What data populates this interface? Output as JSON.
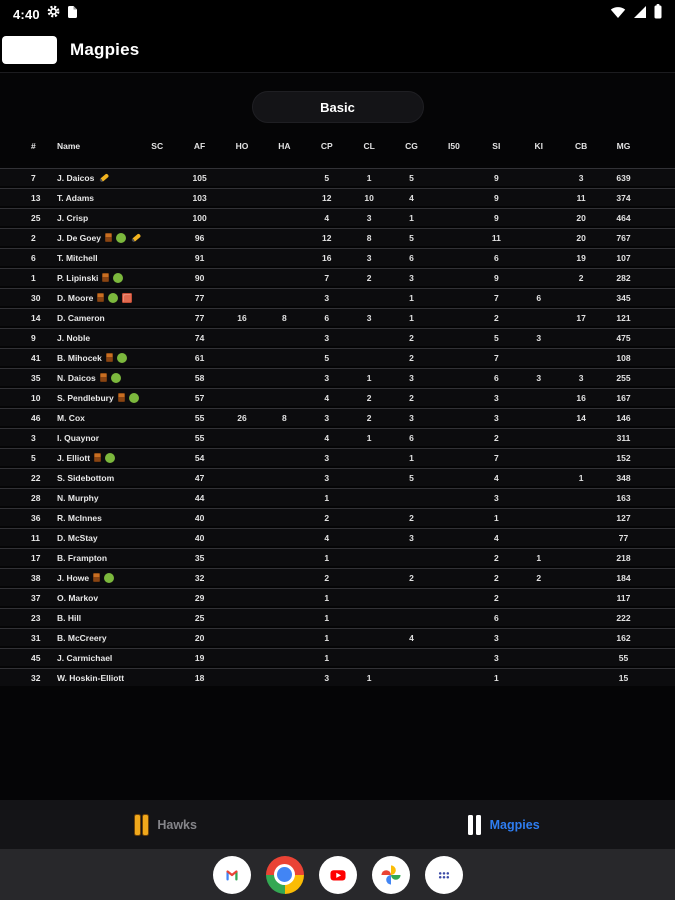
{
  "status_bar": {
    "time": "4:40",
    "left_icons": [
      "gear-icon",
      "file-icon"
    ],
    "right_icons": [
      "wifi-icon",
      "signal-icon",
      "battery-icon"
    ]
  },
  "header": {
    "title": "Magpies"
  },
  "view_toggle": {
    "label": "Basic"
  },
  "table": {
    "columns": [
      "#",
      "Name",
      "SC",
      "AF",
      "HO",
      "HA",
      "CP",
      "CL",
      "CG",
      "I50",
      "SI",
      "KI",
      "CB",
      "MG"
    ],
    "rows": [
      {
        "num": "7",
        "name": "J. Daicos",
        "icons": [
          "pencil"
        ],
        "stats": [
          "",
          "105",
          "",
          "",
          "5",
          "1",
          "5",
          "",
          "9",
          "",
          "3",
          "639"
        ]
      },
      {
        "num": "13",
        "name": "T. Adams",
        "icons": [],
        "stats": [
          "",
          "103",
          "",
          "",
          "12",
          "10",
          "4",
          "",
          "9",
          "",
          "11",
          "374"
        ]
      },
      {
        "num": "25",
        "name": "J. Crisp",
        "icons": [],
        "stats": [
          "",
          "100",
          "",
          "",
          "4",
          "3",
          "1",
          "",
          "9",
          "",
          "20",
          "464"
        ]
      },
      {
        "num": "2",
        "name": "J. De Goey",
        "icons": [
          "bench",
          "green",
          "pencil"
        ],
        "stats": [
          "",
          "96",
          "",
          "",
          "12",
          "8",
          "5",
          "",
          "11",
          "",
          "20",
          "767"
        ]
      },
      {
        "num": "6",
        "name": "T. Mitchell",
        "icons": [],
        "stats": [
          "",
          "91",
          "",
          "",
          "16",
          "3",
          "6",
          "",
          "6",
          "",
          "19",
          "107"
        ]
      },
      {
        "num": "1",
        "name": "P. Lipinski",
        "icons": [
          "bench",
          "green"
        ],
        "stats": [
          "",
          "90",
          "",
          "",
          "7",
          "2",
          "3",
          "",
          "9",
          "",
          "2",
          "282"
        ]
      },
      {
        "num": "30",
        "name": "D. Moore",
        "icons": [
          "bench",
          "green",
          "card"
        ],
        "stats": [
          "",
          "77",
          "",
          "",
          "3",
          "",
          "1",
          "",
          "7",
          "6",
          "",
          "345"
        ]
      },
      {
        "num": "14",
        "name": "D. Cameron",
        "icons": [],
        "stats": [
          "",
          "77",
          "16",
          "8",
          "6",
          "3",
          "1",
          "",
          "2",
          "",
          "17",
          "121"
        ]
      },
      {
        "num": "9",
        "name": "J. Noble",
        "icons": [],
        "stats": [
          "",
          "74",
          "",
          "",
          "3",
          "",
          "2",
          "",
          "5",
          "3",
          "",
          "475"
        ]
      },
      {
        "num": "41",
        "name": "B. Mihocek",
        "icons": [
          "bench",
          "green"
        ],
        "stats": [
          "",
          "61",
          "",
          "",
          "5",
          "",
          "2",
          "",
          "7",
          "",
          "",
          "108"
        ]
      },
      {
        "num": "35",
        "name": "N. Daicos",
        "icons": [
          "bench",
          "green"
        ],
        "stats": [
          "",
          "58",
          "",
          "",
          "3",
          "1",
          "3",
          "",
          "6",
          "3",
          "3",
          "255"
        ]
      },
      {
        "num": "10",
        "name": "S. Pendlebury",
        "icons": [
          "bench",
          "green"
        ],
        "stats": [
          "",
          "57",
          "",
          "",
          "4",
          "2",
          "2",
          "",
          "3",
          "",
          "16",
          "167"
        ]
      },
      {
        "num": "46",
        "name": "M. Cox",
        "icons": [],
        "stats": [
          "",
          "55",
          "26",
          "8",
          "3",
          "2",
          "3",
          "",
          "3",
          "",
          "14",
          "146"
        ]
      },
      {
        "num": "3",
        "name": "I. Quaynor",
        "icons": [],
        "stats": [
          "",
          "55",
          "",
          "",
          "4",
          "1",
          "6",
          "",
          "2",
          "",
          "",
          "311"
        ]
      },
      {
        "num": "5",
        "name": "J. Elliott",
        "icons": [
          "bench",
          "green"
        ],
        "stats": [
          "",
          "54",
          "",
          "",
          "3",
          "",
          "1",
          "",
          "7",
          "",
          "",
          "152"
        ]
      },
      {
        "num": "22",
        "name": "S. Sidebottom",
        "icons": [],
        "stats": [
          "",
          "47",
          "",
          "",
          "3",
          "",
          "5",
          "",
          "4",
          "",
          "1",
          "348"
        ]
      },
      {
        "num": "28",
        "name": "N. Murphy",
        "icons": [],
        "stats": [
          "",
          "44",
          "",
          "",
          "1",
          "",
          "",
          "",
          "3",
          "",
          "",
          "163"
        ]
      },
      {
        "num": "36",
        "name": "R. McInnes",
        "icons": [],
        "stats": [
          "",
          "40",
          "",
          "",
          "2",
          "",
          "2",
          "",
          "1",
          "",
          "",
          "127"
        ]
      },
      {
        "num": "11",
        "name": "D. McStay",
        "icons": [],
        "stats": [
          "",
          "40",
          "",
          "",
          "4",
          "",
          "3",
          "",
          "4",
          "",
          "",
          "77"
        ]
      },
      {
        "num": "17",
        "name": "B. Frampton",
        "icons": [],
        "stats": [
          "",
          "35",
          "",
          "",
          "1",
          "",
          "",
          "",
          "2",
          "1",
          "",
          "218"
        ]
      },
      {
        "num": "38",
        "name": "J. Howe",
        "icons": [
          "bench",
          "green"
        ],
        "stats": [
          "",
          "32",
          "",
          "",
          "2",
          "",
          "2",
          "",
          "2",
          "2",
          "",
          "184"
        ]
      },
      {
        "num": "37",
        "name": "O. Markov",
        "icons": [],
        "stats": [
          "",
          "29",
          "",
          "",
          "1",
          "",
          "",
          "",
          "2",
          "",
          "",
          "117"
        ]
      },
      {
        "num": "23",
        "name": "B. Hill",
        "icons": [],
        "stats": [
          "",
          "25",
          "",
          "",
          "1",
          "",
          "",
          "",
          "6",
          "",
          "",
          "222"
        ]
      },
      {
        "num": "31",
        "name": "B. McCreery",
        "icons": [],
        "stats": [
          "",
          "20",
          "",
          "",
          "1",
          "",
          "4",
          "",
          "3",
          "",
          "",
          "162"
        ]
      },
      {
        "num": "45",
        "name": "J. Carmichael",
        "icons": [],
        "stats": [
          "",
          "19",
          "",
          "",
          "1",
          "",
          "",
          "",
          "3",
          "",
          "",
          "55"
        ]
      },
      {
        "num": "32",
        "name": "W. Hoskin-Elliott",
        "icons": [],
        "stats": [
          "",
          "18",
          "",
          "",
          "3",
          "1",
          "",
          "",
          "1",
          "",
          "",
          "15"
        ]
      }
    ]
  },
  "tabs": [
    {
      "label": "Hawks",
      "active": false,
      "icon": "hawks-stripes-icon"
    },
    {
      "label": "Magpies",
      "active": true,
      "icon": "magpies-stripes-icon"
    }
  ],
  "dock": {
    "items": [
      "gmail",
      "chrome",
      "youtube",
      "photos",
      "app-drawer"
    ]
  },
  "colors": {
    "active_tab_blue": "#2e7df0",
    "hawks_gold": "#f0a81c",
    "row_bg": "#0c0c0e",
    "green_status": "#7cb83d",
    "card_orange": "#e06a50"
  }
}
